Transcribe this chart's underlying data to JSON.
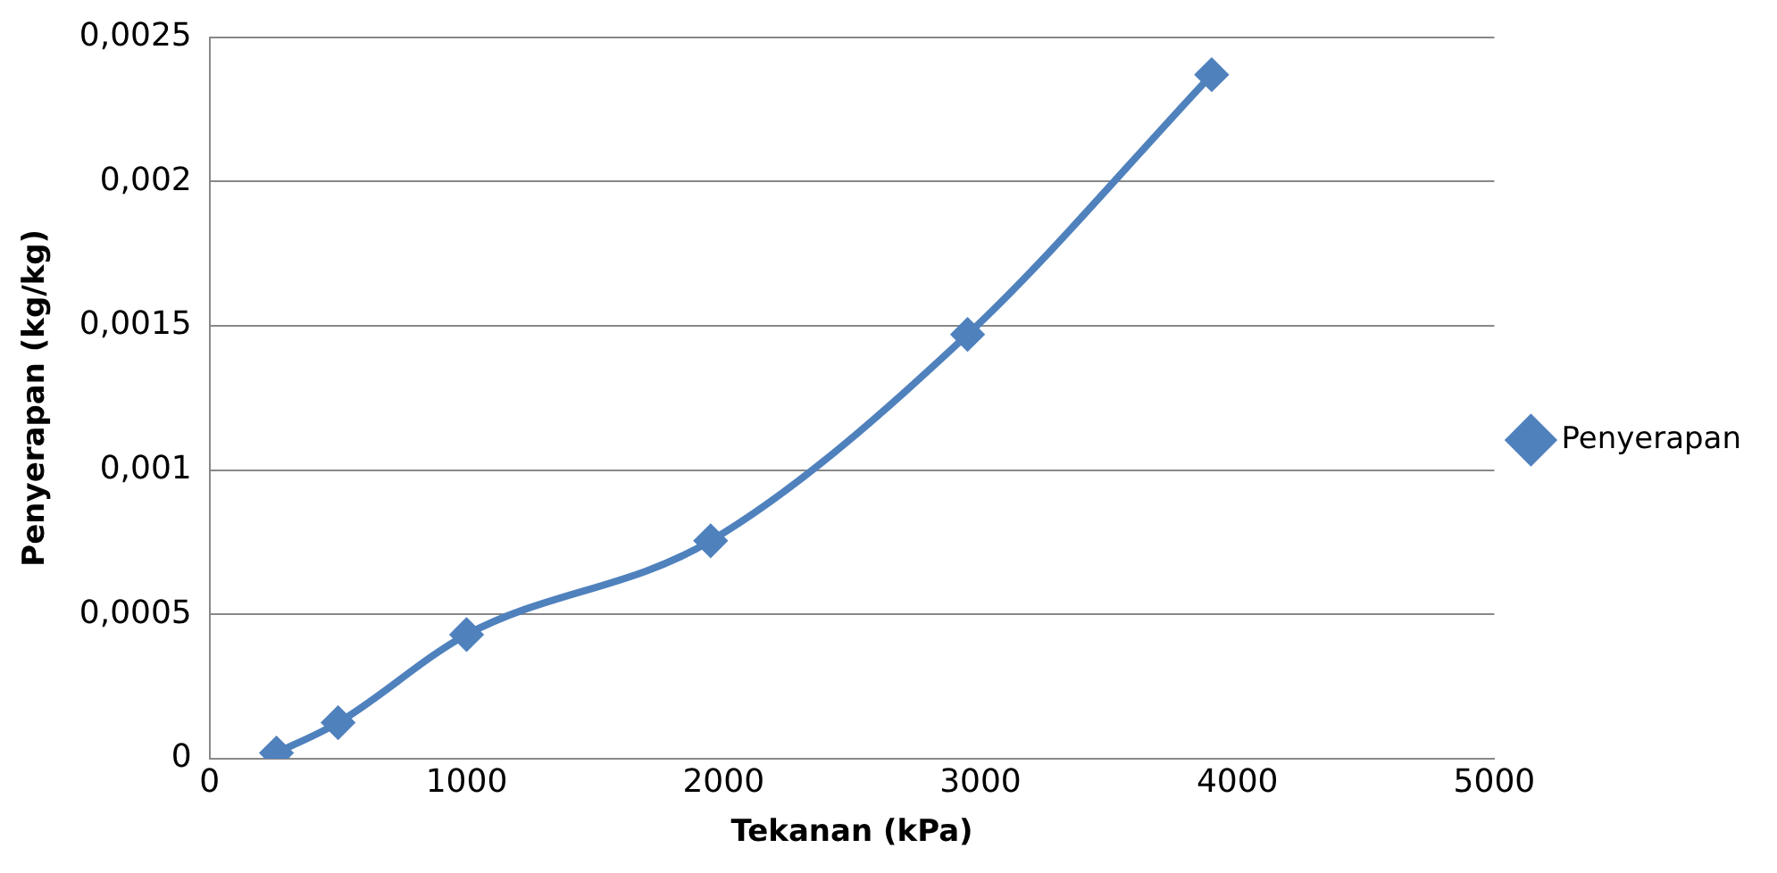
{
  "chart_data": {
    "type": "line",
    "xlabel": "Tekanan (kPa)",
    "ylabel": "Penyerapan (kg/kg)",
    "x": [
      260,
      500,
      1000,
      1950,
      2950,
      3900
    ],
    "series": [
      {
        "name": "Penyerapan",
        "color": "#4f81bd",
        "values": [
          2e-05,
          0.000125,
          0.00043,
          0.000755,
          0.00147,
          0.00237
        ]
      }
    ],
    "xlim": [
      0,
      5000
    ],
    "xticks": [
      0,
      1000,
      2000,
      3000,
      4000,
      5000
    ],
    "ylim": [
      0,
      0.0025
    ],
    "yticks": [
      {
        "value": 0,
        "label": "0"
      },
      {
        "value": 0.0005,
        "label": "0,0005"
      },
      {
        "value": 0.001,
        "label": "0,001"
      },
      {
        "value": 0.0015,
        "label": "0,0015"
      },
      {
        "value": 0.002,
        "label": "0,002"
      },
      {
        "value": 0.0025,
        "label": "0,0025"
      }
    ],
    "grid": "y",
    "legend": "right",
    "marker": "diamond",
    "line_style": "solid"
  }
}
